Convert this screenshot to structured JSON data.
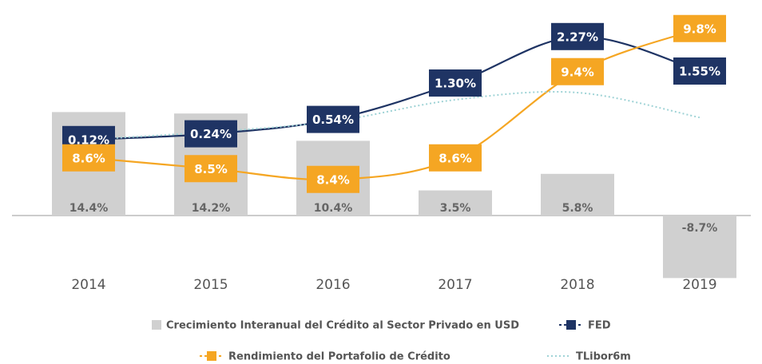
{
  "chart_data": {
    "type": "bar",
    "categories": [
      "2014",
      "2015",
      "2016",
      "2017",
      "2018",
      "2019"
    ],
    "ylim": [
      -10,
      20
    ],
    "series": [
      {
        "name": "Crecimiento Interanual del Crédito al Sector Privado en USD",
        "type": "bar",
        "color": "#d0d0d0",
        "values": [
          14.4,
          14.2,
          10.4,
          3.5,
          5.8,
          -8.7
        ],
        "value_labels": [
          "14.4%",
          "14.2%",
          "10.4%",
          "3.5%",
          "5.8%",
          "-8.7%"
        ]
      },
      {
        "name": "FED",
        "type": "line",
        "color": "#1f3464",
        "ylim": [
          -1.5,
          3
        ],
        "values": [
          0.12,
          0.24,
          0.54,
          1.3,
          2.27,
          1.55
        ],
        "value_labels": [
          "0.12%",
          "0.24%",
          "0.54%",
          "1.30%",
          "2.27%",
          "1.55%"
        ]
      },
      {
        "name": "Rendimiento del Portafolio de Crédito",
        "type": "line",
        "color": "#f5a623",
        "ylim": [
          8.05,
          10.05
        ],
        "values": [
          8.6,
          8.5,
          8.4,
          8.6,
          9.4,
          9.8
        ],
        "value_labels": [
          "8.6%",
          "8.5%",
          "8.4%",
          "8.6%",
          "9.4%",
          "9.8%"
        ]
      },
      {
        "name": "TLibor6m",
        "type": "line",
        "color": "#9fd3d6",
        "ylim": [
          -1.5,
          3
        ],
        "dotted": true,
        "values": [
          0.12,
          0.28,
          0.5,
          0.95,
          1.1,
          0.58
        ]
      }
    ]
  }
}
